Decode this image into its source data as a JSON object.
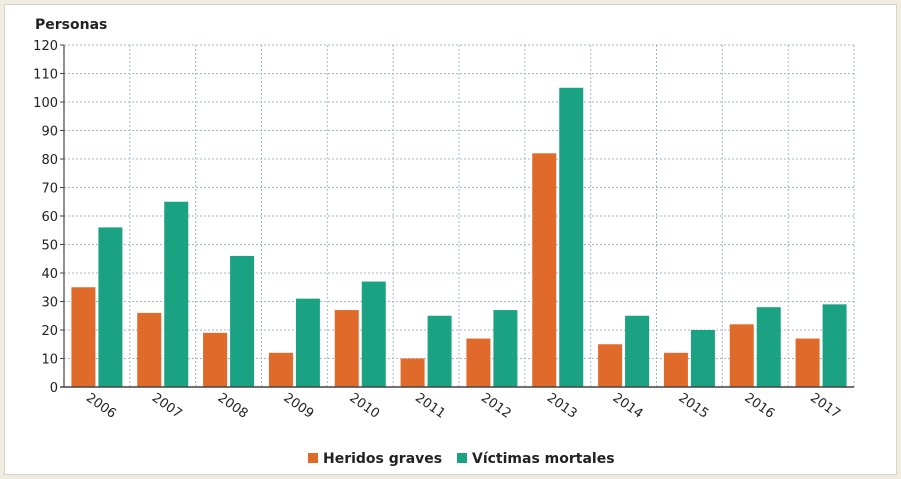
{
  "chart_data": {
    "type": "bar",
    "ylabel": "Personas",
    "ylim": [
      0,
      120
    ],
    "yticks": [
      0,
      10,
      20,
      30,
      40,
      50,
      60,
      70,
      80,
      90,
      100,
      110,
      120
    ],
    "categories": [
      "2006",
      "2007",
      "2008",
      "2009",
      "2010",
      "2011",
      "2012",
      "2013",
      "2014",
      "2015",
      "2016",
      "2017"
    ],
    "series": [
      {
        "name": "Heridos graves",
        "color": "#e06a2a",
        "values": [
          35,
          26,
          19,
          12,
          27,
          10,
          17,
          82,
          15,
          12,
          22,
          17
        ]
      },
      {
        "name": "Víctimas mortales",
        "color": "#1aa282",
        "values": [
          56,
          65,
          46,
          31,
          37,
          25,
          27,
          105,
          25,
          20,
          28,
          29
        ]
      }
    ],
    "grid": true,
    "legend_position": "bottom"
  }
}
